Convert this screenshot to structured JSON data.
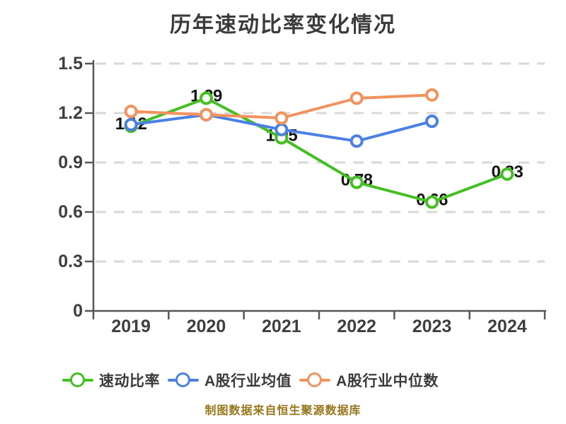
{
  "title": "历年速动比率变化情况",
  "caption": "制图数据来自恒生聚源数据库",
  "colors": {
    "quick_ratio": "#44bf22",
    "industry_mean": "#4a80e4",
    "industry_median": "#f2925c",
    "grid": "#d8d8d8",
    "axis": "#55585b",
    "tick_text": "#3f3f3f",
    "title_text": "#3b3b3b",
    "point_label_text": "#141414",
    "caption_text": "#97761b",
    "background": "#ffffff"
  },
  "chart_data": {
    "type": "line",
    "title": "历年速动比率变化情况",
    "x_labels": [
      "2019",
      "2020",
      "2021",
      "2022",
      "2023",
      "2024"
    ],
    "y_ticks": [
      0,
      0.3,
      0.6,
      0.9,
      1.2,
      1.5
    ],
    "y_tick_labels": [
      "0",
      "0.3",
      "0.6",
      "0.9",
      "1.2",
      "1.5"
    ],
    "ylim": [
      0,
      1.5
    ],
    "grid": "horizontal-dashed",
    "legend_position": "bottom",
    "marker_style": "white-filled-circle-colored-edge",
    "series": [
      {
        "key": "quick-ratio",
        "name": "速动比率",
        "color": "#44bf22",
        "values": [
          1.12,
          1.29,
          1.05,
          0.78,
          0.66,
          0.83
        ],
        "point_labels": [
          "1.12",
          "1.29",
          "1.05",
          "0.78",
          "0.66",
          "0.83"
        ]
      },
      {
        "key": "a-share-industry-mean",
        "name": "A股行业均值",
        "color": "#4a80e4",
        "values": [
          1.13,
          1.19,
          1.1,
          1.03,
          1.15,
          null
        ],
        "point_labels": null
      },
      {
        "key": "a-share-industry-median",
        "name": "A股行业中位数",
        "color": "#f2925c",
        "values": [
          1.21,
          1.19,
          1.17,
          1.29,
          1.31,
          null
        ],
        "point_labels": null
      }
    ]
  }
}
